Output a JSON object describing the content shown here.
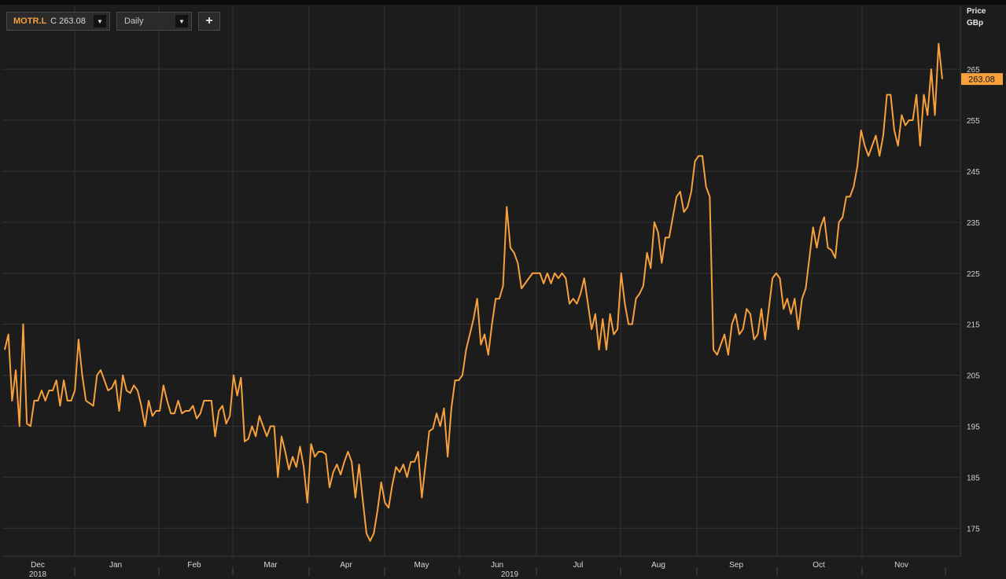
{
  "toolbar": {
    "symbol": "MOTR.L",
    "close_label": "C 263.08",
    "interval": "Daily",
    "add_label": "+"
  },
  "axis": {
    "price_title": "Price",
    "price_unit": "GBp",
    "last_price_label": "263.08"
  },
  "colors": {
    "line": "#f7a03c",
    "background": "#1c1c1c",
    "grid": "#333333",
    "badge": "#f7a03c"
  },
  "chart_data": {
    "type": "line",
    "series": [
      {
        "name": "MOTR.L",
        "values": [
          210.0,
          213.0,
          200.0,
          206.0,
          195.0,
          215.0,
          195.5,
          195.0,
          200.0,
          200.0,
          202.0,
          200.0,
          202.0,
          202.0,
          204.0,
          199.0,
          204.0,
          200.0,
          200.0,
          202.0,
          212.0,
          205.0,
          200.0,
          199.5,
          199.0,
          205.0,
          206.0,
          204.0,
          202.0,
          202.5,
          204.0,
          198.0,
          205.0,
          202.0,
          201.5,
          203.0,
          202.0,
          199.0,
          195.0,
          200.0,
          197.0,
          198.0,
          198.0,
          203.0,
          200.0,
          197.5,
          197.5,
          200.0,
          197.5,
          198.0,
          198.0,
          199.0,
          196.5,
          197.5,
          200.0,
          200.0,
          200.0,
          193.0,
          198.0,
          199.0,
          195.5,
          197.0,
          205.0,
          201.0,
          204.5,
          192.0,
          192.5,
          195.0,
          193.0,
          197.0,
          195.0,
          193.0,
          195.0,
          195.0,
          185.0,
          193.0,
          190.0,
          186.5,
          189.0,
          187.0,
          191.0,
          187.0,
          180.0,
          191.5,
          189.0,
          190.0,
          190.0,
          189.5,
          183.0,
          186.0,
          187.5,
          185.5,
          188.0,
          190.0,
          188.0,
          181.0,
          187.5,
          180.5,
          174.0,
          172.5,
          174.0,
          178.5,
          184.0,
          180.0,
          179.0,
          183.5,
          187.0,
          186.0,
          187.5,
          185.0,
          188.0,
          188.0,
          190.0,
          181.0,
          187.5,
          194.0,
          194.5,
          197.5,
          195.0,
          198.5,
          189.0,
          198.5,
          204.0,
          204.0,
          205.0,
          210.0,
          213.0,
          216.0,
          220.0,
          211.0,
          213.0,
          209.0,
          215.0,
          220.0,
          220.0,
          222.5,
          238.0,
          230.0,
          229.0,
          227.0,
          222.0,
          223.0,
          224.0,
          225.0,
          225.0,
          225.0,
          223.0,
          225.0,
          223.0,
          225.0,
          224.0,
          225.0,
          224.0,
          219.0,
          220.0,
          219.0,
          221.0,
          224.0,
          219.0,
          214.0,
          217.0,
          210.0,
          216.0,
          210.0,
          217.0,
          213.0,
          214.0,
          225.0,
          219.0,
          215.0,
          215.0,
          220.0,
          221.0,
          222.5,
          229.0,
          226.0,
          235.0,
          233.0,
          227.0,
          232.0,
          232.0,
          236.0,
          240.0,
          241.0,
          237.0,
          238.0,
          241.0,
          247.0,
          248.0,
          248.0,
          242.0,
          240.0,
          210.0,
          209.0,
          211.0,
          213.0,
          209.0,
          215.0,
          217.0,
          213.0,
          214.0,
          218.0,
          217.0,
          212.0,
          213.0,
          218.0,
          212.0,
          218.0,
          224.0,
          225.0,
          224.0,
          218.0,
          220.0,
          217.0,
          220.0,
          214.0,
          220.0,
          222.0,
          228.0,
          234.0,
          230.0,
          234.0,
          236.0,
          230.0,
          229.5,
          228.0,
          235.0,
          236.0,
          240.0,
          240.0,
          242.0,
          246.0,
          253.0,
          250.0,
          248.0,
          250.0,
          252.0,
          248.0,
          252.0,
          260.0,
          260.0,
          253.0,
          250.0,
          256.0,
          254.0,
          255.0,
          255.0,
          260.0,
          250.0,
          260.0,
          256.0,
          265.0,
          256.0,
          270.0,
          263.08
        ]
      }
    ],
    "y_ticks": [
      265,
      255,
      245,
      235,
      225,
      215,
      205,
      195,
      185,
      175
    ],
    "x_month_labels": [
      "Dec",
      "Jan",
      "Feb",
      "Mar",
      "Apr",
      "May",
      "Jun",
      "Jul",
      "Aug",
      "Sep",
      "Oct",
      "Nov"
    ],
    "x_year_labels": [
      "2018",
      "2019"
    ],
    "ylim": [
      169.5,
      277.5
    ],
    "last_value": 263.08,
    "grid": true,
    "ylabel": "Price",
    "yunit": "GBp"
  }
}
